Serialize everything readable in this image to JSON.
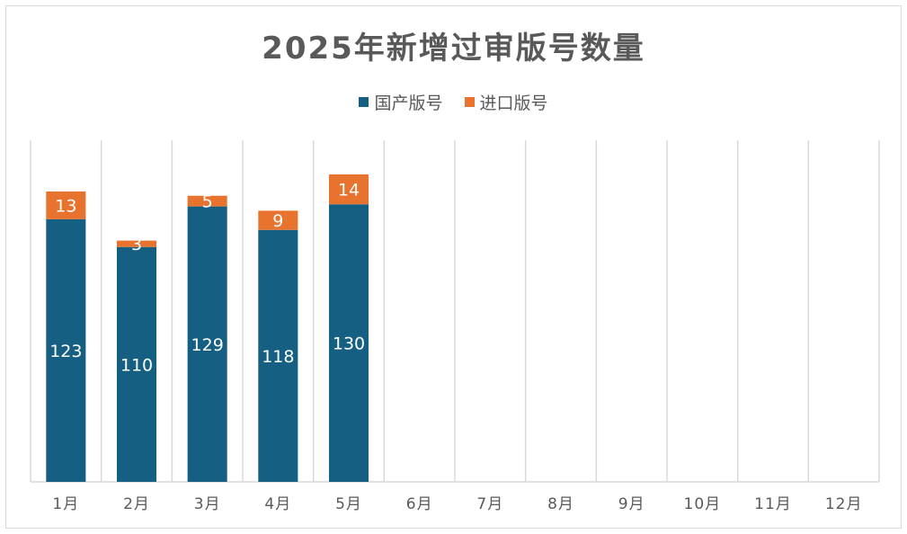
{
  "chart_data": {
    "type": "bar",
    "stacked": true,
    "title": "2025年新增过审版号数量",
    "categories": [
      "1月",
      "2月",
      "3月",
      "4月",
      "5月",
      "6月",
      "7月",
      "8月",
      "9月",
      "10月",
      "11月",
      "12月"
    ],
    "series": [
      {
        "name": "国产版号",
        "color": "#155f83",
        "values": [
          123,
          110,
          129,
          118,
          130,
          null,
          null,
          null,
          null,
          null,
          null,
          null
        ]
      },
      {
        "name": "进口版号",
        "color": "#e8732e",
        "values": [
          13,
          3,
          5,
          9,
          14,
          null,
          null,
          null,
          null,
          null,
          null,
          null
        ]
      }
    ],
    "ylim": [
      0,
      160
    ],
    "grid": "vertical category separators",
    "legend": "top-center",
    "data_labels": true
  }
}
